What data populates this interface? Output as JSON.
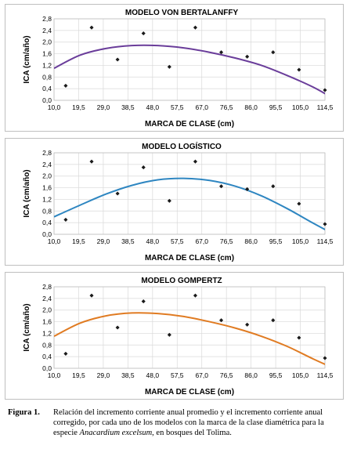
{
  "chart_data": [
    {
      "type": "scatter",
      "title": "MODELO VON BERTALANFFY",
      "xlabel": "MARCA DE CLASE (cm)",
      "ylabel": "ICA (cm/año)",
      "x_ticks": [
        "10,0",
        "19,5",
        "29,0",
        "38,5",
        "48,0",
        "57,5",
        "67,0",
        "76,5",
        "86,0",
        "95,5",
        "105,0",
        "114,5"
      ],
      "y_ticks": [
        "0,0",
        "0,4",
        "0,8",
        "1,2",
        "1,6",
        "2,0",
        "2,4",
        "2,8"
      ],
      "xlim": [
        10,
        114.5
      ],
      "ylim": [
        0,
        2.8
      ],
      "grid": true,
      "points": {
        "x": [
          14.5,
          24.5,
          34.5,
          44.5,
          54.5,
          64.5,
          74.5,
          84.5,
          94.5,
          104.5,
          114.5
        ],
        "y": [
          0.5,
          2.5,
          1.4,
          2.3,
          1.15,
          2.5,
          1.65,
          1.5,
          1.65,
          1.05,
          0.35
        ]
      },
      "fit_curve": {
        "x": [
          10,
          20,
          30,
          40,
          50,
          60,
          70,
          80,
          90,
          100,
          110,
          118
        ],
        "y": [
          1.1,
          1.55,
          1.78,
          1.88,
          1.88,
          1.8,
          1.65,
          1.45,
          1.2,
          0.85,
          0.45,
          0.05
        ]
      },
      "curve_color": "#6a3d9a"
    },
    {
      "type": "scatter",
      "title": "MODELO LOGÍSTICO",
      "xlabel": "MARCA DE CLASE (cm)",
      "ylabel": "ICA (cm/año)",
      "x_ticks": [
        "10,0",
        "19,5",
        "29,0",
        "38,5",
        "48,0",
        "57,5",
        "67,0",
        "76,5",
        "86,0",
        "95,5",
        "105,0",
        "114,5"
      ],
      "y_ticks": [
        "0,0",
        "0,4",
        "0,8",
        "1,2",
        "1,6",
        "2,0",
        "2,4",
        "2,8"
      ],
      "xlim": [
        10,
        114.5
      ],
      "ylim": [
        0,
        2.8
      ],
      "grid": true,
      "points": {
        "x": [
          14.5,
          24.5,
          34.5,
          44.5,
          54.5,
          64.5,
          74.5,
          84.5,
          94.5,
          104.5,
          114.5
        ],
        "y": [
          0.5,
          2.5,
          1.4,
          2.3,
          1.15,
          2.5,
          1.65,
          1.55,
          1.65,
          1.05,
          0.35
        ]
      },
      "fit_curve": {
        "x": [
          10,
          20,
          30,
          40,
          50,
          60,
          70,
          80,
          90,
          100,
          110,
          118
        ],
        "y": [
          0.6,
          1.0,
          1.38,
          1.68,
          1.87,
          1.92,
          1.85,
          1.65,
          1.32,
          0.88,
          0.38,
          0.0
        ]
      },
      "curve_color": "#2e86c1"
    },
    {
      "type": "scatter",
      "title": "MODELO GOMPERTZ",
      "xlabel": "MARCA DE CLASE (cm)",
      "ylabel": "ICA (cm/año)",
      "x_ticks": [
        "10,0",
        "19,5",
        "29,0",
        "38,5",
        "48,0",
        "57,5",
        "67,0",
        "76,5",
        "86,0",
        "95,5",
        "105,0",
        "114,5"
      ],
      "y_ticks": [
        "0,0",
        "0,4",
        "0,8",
        "1,2",
        "1,6",
        "2,0",
        "2,4",
        "2,8"
      ],
      "xlim": [
        10,
        114.5
      ],
      "ylim": [
        0,
        2.8
      ],
      "grid": true,
      "points": {
        "x": [
          14.5,
          24.5,
          34.5,
          44.5,
          54.5,
          64.5,
          74.5,
          84.5,
          94.5,
          104.5,
          114.5
        ],
        "y": [
          0.5,
          2.5,
          1.4,
          2.3,
          1.15,
          2.5,
          1.65,
          1.5,
          1.65,
          1.05,
          0.35
        ]
      },
      "fit_curve": {
        "x": [
          10,
          20,
          30,
          40,
          50,
          60,
          70,
          80,
          90,
          100,
          110,
          118
        ],
        "y": [
          1.1,
          1.55,
          1.8,
          1.9,
          1.88,
          1.78,
          1.6,
          1.38,
          1.1,
          0.75,
          0.32,
          0.0
        ]
      },
      "curve_color": "#e07b22"
    }
  ],
  "caption": {
    "label": "Figura 1.",
    "text_before": "Relación del incremento corriente anual promedio y el incremento corriente anual corregido, por cada uno de los modelos con la marca de la clase diamétrica para la especie ",
    "species": "Anacardium excelsum",
    "text_after": ", en bosques del Tolima."
  }
}
